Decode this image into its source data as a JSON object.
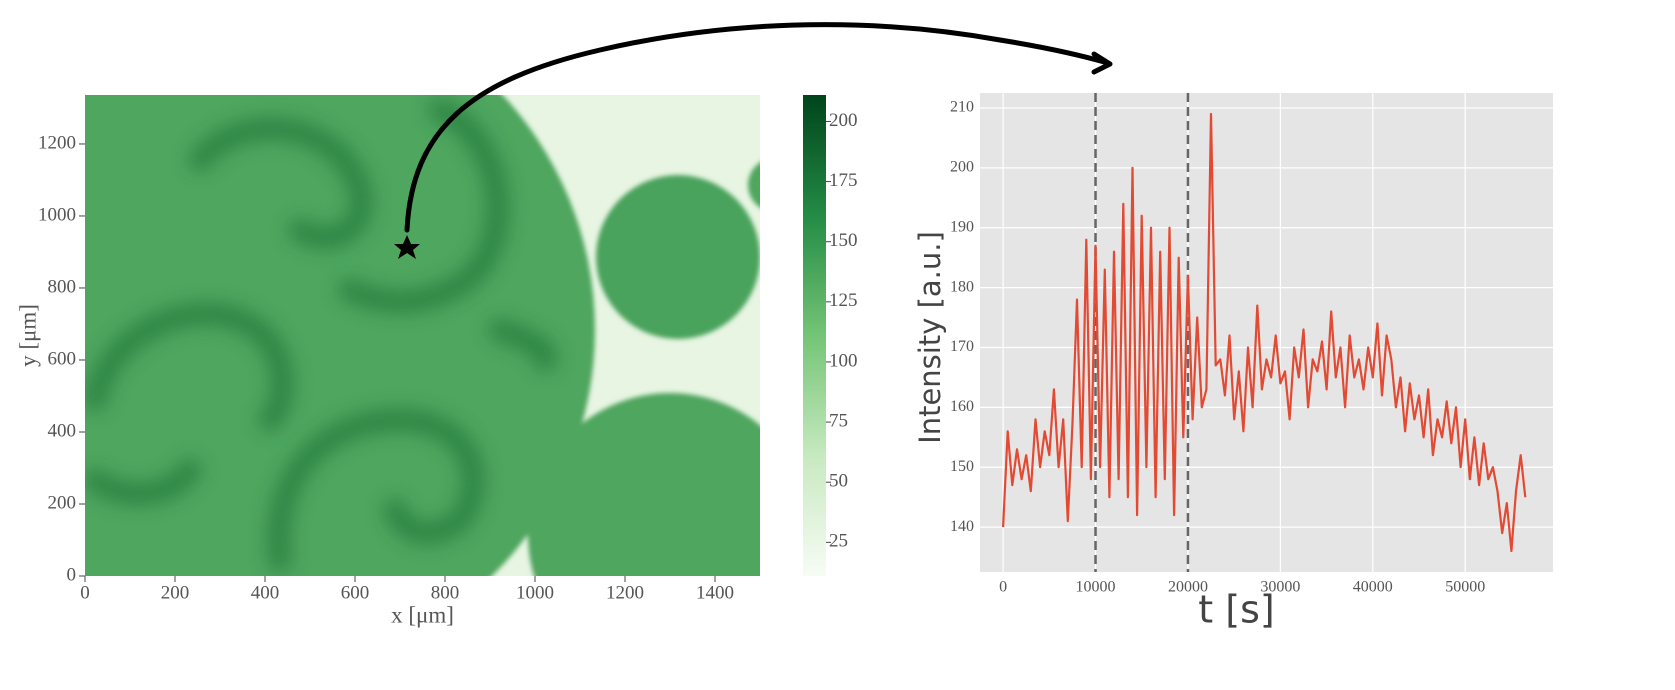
{
  "chart_data": [
    {
      "type": "image",
      "xlabel": "x [μm]",
      "ylabel": "y [μm]",
      "xlim": [
        0,
        1500
      ],
      "ylim": [
        0,
        1336
      ],
      "xticks": [
        0,
        200,
        400,
        600,
        800,
        1000,
        1200,
        1400
      ],
      "yticks": [
        0,
        200,
        400,
        600,
        800,
        1000,
        1200
      ],
      "colormap": "Greens",
      "colorbar": {
        "lim": [
          11,
          211
        ],
        "ticks": [
          25,
          50,
          75,
          100,
          125,
          150,
          175,
          200
        ]
      }
    },
    {
      "type": "line",
      "xlabel": "t [s]",
      "ylabel": "Intensity [a.u.]",
      "xlim": [
        -2500,
        59500
      ],
      "ylim": [
        132.5,
        212.5
      ],
      "xticks": [
        0,
        10000,
        20000,
        30000,
        40000,
        50000
      ],
      "yticks": [
        140,
        150,
        160,
        170,
        180,
        190,
        200,
        210
      ],
      "grid": true,
      "color": "#e24a33",
      "vlines": [
        10000,
        20000
      ],
      "x": [
        0,
        500,
        1000,
        1500,
        2000,
        2500,
        3000,
        3500,
        4000,
        4500,
        5000,
        5500,
        6000,
        6500,
        7000,
        7500,
        8000,
        8500,
        9000,
        9500,
        10000,
        10500,
        11000,
        11500,
        12000,
        12500,
        13000,
        13500,
        14000,
        14500,
        15000,
        15500,
        16000,
        16500,
        17000,
        17500,
        18000,
        18500,
        19000,
        19500,
        20000,
        20500,
        21000,
        21500,
        22000,
        22500,
        23000,
        23500,
        24000,
        24500,
        25000,
        25500,
        26000,
        26500,
        27000,
        27500,
        28000,
        28500,
        29000,
        29500,
        30000,
        30500,
        31000,
        31500,
        32000,
        32500,
        33000,
        33500,
        34000,
        34500,
        35000,
        35500,
        36000,
        36500,
        37000,
        37500,
        38000,
        38500,
        39000,
        39500,
        40000,
        40500,
        41000,
        41500,
        42000,
        42500,
        43000,
        43500,
        44000,
        44500,
        45000,
        45500,
        46000,
        46500,
        47000,
        47500,
        48000,
        48500,
        49000,
        49500,
        50000,
        50500,
        51000,
        51500,
        52000,
        52500,
        53000,
        53500,
        54000,
        54500,
        55000,
        55500,
        56000,
        56500
      ],
      "values": [
        140,
        156,
        147,
        153,
        148,
        152,
        146,
        158,
        150,
        156,
        152,
        163,
        150,
        158,
        141,
        157,
        178,
        150,
        188,
        148,
        187,
        150,
        183,
        145,
        186,
        148,
        194,
        145,
        200,
        142,
        192,
        150,
        190,
        145,
        186,
        148,
        190,
        142,
        185,
        155,
        182,
        158,
        175,
        160,
        163,
        209,
        167,
        168,
        162,
        172,
        158,
        166,
        156,
        170,
        160,
        177,
        163,
        168,
        165,
        172,
        164,
        166,
        158,
        170,
        165,
        173,
        160,
        168,
        166,
        171,
        163,
        176,
        165,
        170,
        160,
        172,
        165,
        168,
        163,
        170,
        165,
        174,
        162,
        172,
        168,
        160,
        165,
        156,
        164,
        158,
        162,
        155,
        163,
        152,
        158,
        155,
        161,
        154,
        160,
        150,
        158,
        148,
        155,
        147,
        154,
        148,
        150,
        146,
        139,
        144,
        136,
        146,
        152,
        145
      ]
    }
  ]
}
